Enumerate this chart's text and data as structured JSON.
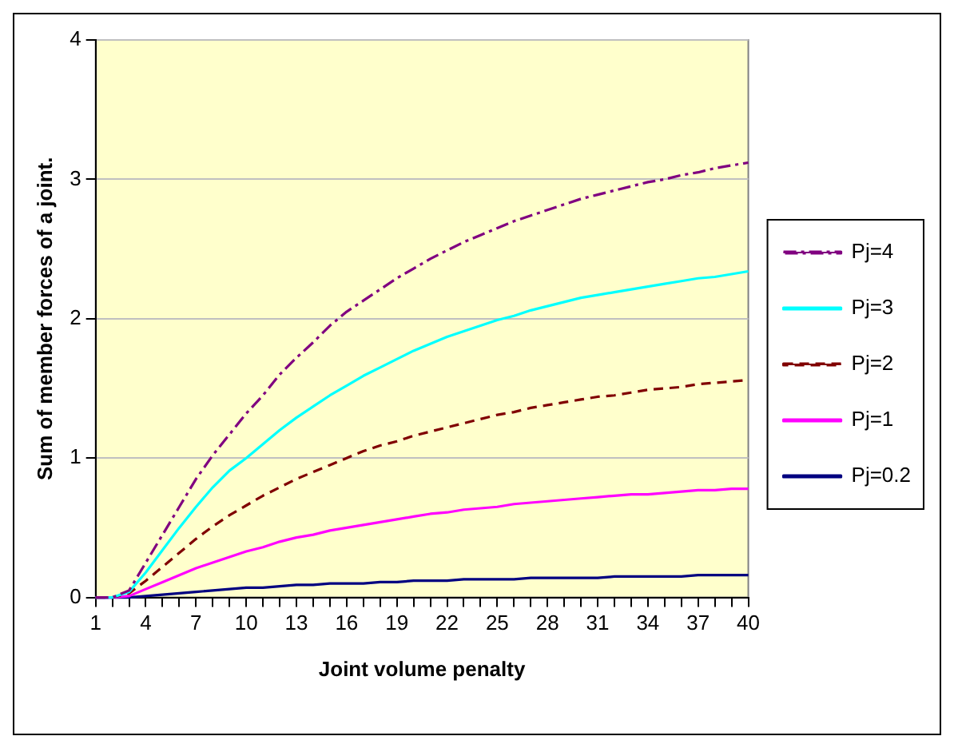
{
  "chart_data": {
    "type": "line",
    "xlabel": "Joint volume penalty",
    "ylabel": "Sum of member forces of a joint.",
    "categories": [
      "1",
      null,
      null,
      "4",
      null,
      null,
      "7",
      null,
      null,
      "10",
      null,
      null,
      "13",
      null,
      null,
      "16",
      null,
      null,
      "19",
      null,
      null,
      "22",
      null,
      null,
      "25",
      null,
      null,
      "28",
      null,
      null,
      "31",
      null,
      null,
      "34",
      null,
      null,
      "37",
      null,
      null,
      "40"
    ],
    "ylim": [
      0,
      4
    ],
    "yticks": [
      0,
      1,
      2,
      3,
      4
    ],
    "grid": "y",
    "legend": "right",
    "marker": "none",
    "series": [
      {
        "name": "Pj=4",
        "color": "#800080",
        "line_style": "dashdot",
        "values": [
          0,
          0,
          0.05,
          0.25,
          0.45,
          0.65,
          0.85,
          1.02,
          1.17,
          1.32,
          1.45,
          1.6,
          1.72,
          1.83,
          1.95,
          2.05,
          2.13,
          2.21,
          2.29,
          2.36,
          2.43,
          2.49,
          2.55,
          2.6,
          2.65,
          2.7,
          2.74,
          2.78,
          2.82,
          2.86,
          2.89,
          2.92,
          2.95,
          2.98,
          3.0,
          3.03,
          3.05,
          3.08,
          3.1,
          3.12
        ]
      },
      {
        "name": "Pj=3",
        "color": "#00ffff",
        "line_style": "solid",
        "values": [
          0,
          0,
          0.04,
          0.18,
          0.34,
          0.5,
          0.65,
          0.79,
          0.91,
          1.0,
          1.1,
          1.2,
          1.29,
          1.37,
          1.45,
          1.52,
          1.59,
          1.65,
          1.71,
          1.77,
          1.82,
          1.87,
          1.91,
          1.95,
          1.99,
          2.02,
          2.06,
          2.09,
          2.12,
          2.15,
          2.17,
          2.19,
          2.21,
          2.23,
          2.25,
          2.27,
          2.29,
          2.3,
          2.32,
          2.34
        ]
      },
      {
        "name": "Pj=2",
        "color": "#800000",
        "line_style": "dashed",
        "values": [
          0,
          0,
          0.03,
          0.12,
          0.22,
          0.32,
          0.42,
          0.51,
          0.59,
          0.66,
          0.73,
          0.79,
          0.85,
          0.9,
          0.95,
          1.0,
          1.05,
          1.09,
          1.12,
          1.16,
          1.19,
          1.22,
          1.25,
          1.28,
          1.31,
          1.33,
          1.36,
          1.38,
          1.4,
          1.42,
          1.44,
          1.45,
          1.47,
          1.49,
          1.5,
          1.51,
          1.53,
          1.54,
          1.55,
          1.56
        ]
      },
      {
        "name": "Pj=1",
        "color": "#ff00ff",
        "line_style": "solid",
        "values": [
          0,
          0,
          0.01,
          0.06,
          0.11,
          0.16,
          0.21,
          0.25,
          0.29,
          0.33,
          0.36,
          0.4,
          0.43,
          0.45,
          0.48,
          0.5,
          0.52,
          0.54,
          0.56,
          0.58,
          0.6,
          0.61,
          0.63,
          0.64,
          0.65,
          0.67,
          0.68,
          0.69,
          0.7,
          0.71,
          0.72,
          0.73,
          0.74,
          0.74,
          0.75,
          0.76,
          0.77,
          0.77,
          0.78,
          0.78
        ]
      },
      {
        "name": "Pj=0.2",
        "color": "#000080",
        "line_style": "solid",
        "values": [
          0,
          0,
          0,
          0.01,
          0.02,
          0.03,
          0.04,
          0.05,
          0.06,
          0.07,
          0.07,
          0.08,
          0.09,
          0.09,
          0.1,
          0.1,
          0.1,
          0.11,
          0.11,
          0.12,
          0.12,
          0.12,
          0.13,
          0.13,
          0.13,
          0.13,
          0.14,
          0.14,
          0.14,
          0.14,
          0.14,
          0.15,
          0.15,
          0.15,
          0.15,
          0.15,
          0.16,
          0.16,
          0.16,
          0.16
        ]
      }
    ]
  }
}
